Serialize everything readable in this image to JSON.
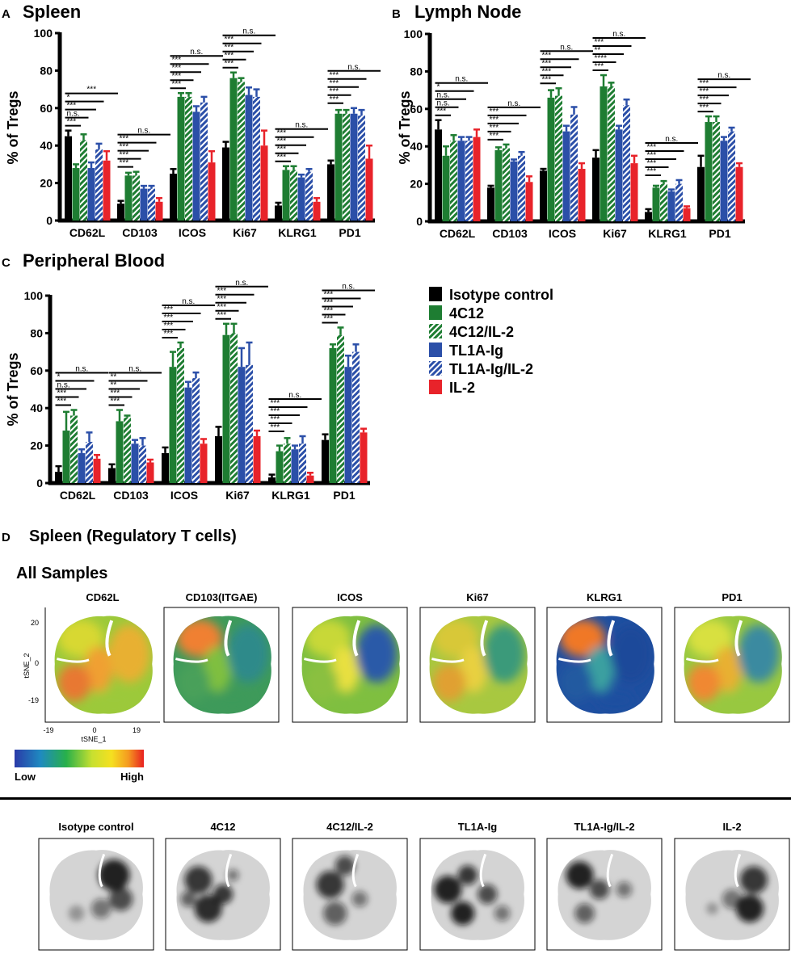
{
  "chart_data": [
    {
      "type": "bar",
      "panel": "A",
      "title": "Spleen",
      "ylabel": "% of Tregs",
      "xlabel": "",
      "ylim": [
        0,
        100
      ],
      "yticks": [
        0,
        20,
        40,
        60,
        80,
        100
      ],
      "categories": [
        "CD62L",
        "CD103",
        "ICOS",
        "Ki67",
        "KLRG1",
        "PD1"
      ],
      "series": [
        {
          "name": "Isotype control",
          "values": [
            45,
            9,
            25,
            39,
            8,
            30
          ],
          "errors": [
            3,
            1.5,
            2.5,
            3,
            1.5,
            2
          ]
        },
        {
          "name": "4C12",
          "values": [
            28,
            24,
            66,
            76,
            27,
            57
          ],
          "errors": [
            2,
            1.5,
            2,
            3,
            2,
            2
          ]
        },
        {
          "name": "4C12/IL-2",
          "values": [
            43,
            24,
            66,
            74,
            27,
            57
          ],
          "errors": [
            3,
            2,
            2,
            2,
            2,
            2
          ]
        },
        {
          "name": "TL1A-Ig",
          "values": [
            28,
            17,
            58,
            67,
            23,
            57
          ],
          "errors": [
            3,
            1.5,
            3,
            4,
            1.5,
            3
          ]
        },
        {
          "name": "TL1A-Ig/IL-2",
          "values": [
            38,
            17,
            63,
            66,
            26,
            56
          ],
          "errors": [
            3,
            1.5,
            3,
            4,
            1.5,
            3
          ]
        },
        {
          "name": "IL-2",
          "values": [
            32,
            10,
            31,
            40,
            10,
            33
          ],
          "errors": [
            5,
            2,
            6,
            8,
            2,
            7
          ]
        }
      ],
      "significance": [
        [
          "***",
          "n.s.",
          "***",
          "*",
          "***"
        ],
        [
          "***",
          "***",
          "***",
          "***",
          "n.s."
        ],
        [
          "***",
          "***",
          "***",
          "***",
          "n.s."
        ],
        [
          "***",
          "***",
          "***",
          "***",
          "n.s."
        ],
        [
          "***",
          "***",
          "***",
          "***",
          "n.s."
        ],
        [
          "***",
          "***",
          "***",
          "***",
          "n.s."
        ]
      ]
    },
    {
      "type": "bar",
      "panel": "B",
      "title": "Lymph Node",
      "ylabel": "% of Tregs",
      "xlabel": "",
      "ylim": [
        0,
        100
      ],
      "yticks": [
        0,
        20,
        40,
        60,
        80,
        100
      ],
      "categories": [
        "CD62L",
        "CD103",
        "ICOS",
        "Ki67",
        "KLRG1",
        "PD1"
      ],
      "series": [
        {
          "name": "Isotype control",
          "values": [
            49,
            18,
            27,
            34,
            5,
            29
          ],
          "errors": [
            5,
            1,
            1,
            4,
            1.5,
            6
          ]
        },
        {
          "name": "4C12",
          "values": [
            35,
            38,
            66,
            72,
            18,
            53
          ],
          "errors": [
            5,
            1.5,
            4,
            6,
            1,
            3
          ]
        },
        {
          "name": "4C12/IL-2",
          "values": [
            43,
            39,
            67,
            72,
            20,
            53
          ],
          "errors": [
            3,
            2,
            4,
            2,
            1.5,
            3
          ]
        },
        {
          "name": "TL1A-Ig",
          "values": [
            43,
            32,
            48,
            49,
            16,
            43
          ],
          "errors": [
            2,
            1,
            3,
            2,
            1,
            2
          ]
        },
        {
          "name": "TL1A-Ig/IL-2",
          "values": [
            43,
            35,
            57,
            62,
            20,
            48
          ],
          "errors": [
            2,
            2,
            4,
            3,
            2,
            2
          ]
        },
        {
          "name": "IL-2",
          "values": [
            45,
            21,
            28,
            31,
            7,
            29
          ],
          "errors": [
            4,
            3,
            3,
            4,
            1,
            2
          ]
        }
      ],
      "significance": [
        [
          "***",
          "n.s.",
          "n.s.",
          "*",
          "n.s."
        ],
        [
          "***",
          "***",
          "***",
          "***",
          "n.s."
        ],
        [
          "***",
          "***",
          "***",
          "***",
          "n.s."
        ],
        [
          "***",
          "****",
          "**",
          "***",
          "n.s."
        ],
        [
          "***",
          "***",
          "***",
          "***",
          "n.s."
        ],
        [
          "***",
          "***",
          "***",
          "***",
          "n.s."
        ]
      ]
    },
    {
      "type": "bar",
      "panel": "C",
      "title": "Peripheral Blood",
      "ylabel": "% of Tregs",
      "xlabel": "",
      "ylim": [
        0,
        100
      ],
      "yticks": [
        0,
        20,
        40,
        60,
        80,
        100
      ],
      "categories": [
        "CD62L",
        "CD103",
        "ICOS",
        "Ki67",
        "KLRG1",
        "PD1"
      ],
      "series": [
        {
          "name": "Isotype control",
          "values": [
            6,
            8,
            16,
            25,
            3,
            23
          ],
          "errors": [
            3,
            2,
            3,
            5,
            1.5,
            3
          ]
        },
        {
          "name": "4C12",
          "values": [
            28,
            33,
            62,
            79,
            17,
            72
          ],
          "errors": [
            10,
            6,
            8,
            6,
            3,
            2
          ]
        },
        {
          "name": "4C12/IL-2",
          "values": [
            36,
            35,
            72,
            80,
            21,
            79
          ],
          "errors": [
            3,
            1,
            3,
            5,
            3,
            4
          ]
        },
        {
          "name": "TL1A-Ig",
          "values": [
            16,
            21,
            51,
            62,
            18,
            62
          ],
          "errors": [
            2,
            2,
            3,
            10,
            2,
            6
          ]
        },
        {
          "name": "TL1A-Ig/IL-2",
          "values": [
            22,
            20,
            56,
            63,
            21,
            70
          ],
          "errors": [
            5,
            4,
            3,
            12,
            4,
            4
          ]
        },
        {
          "name": "IL-2",
          "values": [
            13,
            11,
            21,
            25,
            4,
            27
          ],
          "errors": [
            2,
            1.5,
            2.5,
            3,
            1.5,
            2
          ]
        }
      ],
      "significance": [
        [
          "***",
          "***",
          "n.s.",
          "*",
          "n.s."
        ],
        [
          "***",
          "***",
          "**",
          "**",
          "n.s."
        ],
        [
          "***",
          "***",
          "***",
          "***",
          "n.s."
        ],
        [
          "***",
          "***",
          "***",
          "***",
          "n.s."
        ],
        [
          "***",
          "***",
          "***",
          "***",
          "n.s."
        ],
        [
          "***",
          "***",
          "***",
          "***",
          "n.s."
        ]
      ]
    }
  ],
  "panels": {
    "A": {
      "letter": "A",
      "title": "Spleen"
    },
    "B": {
      "letter": "B",
      "title": "Lymph Node"
    },
    "C": {
      "letter": "C",
      "title": "Peripheral Blood"
    },
    "D": {
      "letter": "D",
      "title": "Spleen (Regulatory T cells)"
    }
  },
  "legend": {
    "items": [
      {
        "label": "Isotype control",
        "color": "#000000",
        "pattern": "solid"
      },
      {
        "label": "4C12",
        "color": "#1e7d32",
        "pattern": "solid"
      },
      {
        "label": "4C12/IL-2",
        "color": "#1e7d32",
        "pattern": "hatched"
      },
      {
        "label": "TL1A-Ig",
        "color": "#2b4fa8",
        "pattern": "solid"
      },
      {
        "label": "TL1A-Ig/IL-2",
        "color": "#2b4fa8",
        "pattern": "hatched"
      },
      {
        "label": "IL-2",
        "color": "#e8232a",
        "pattern": "solid"
      }
    ]
  },
  "tsne": {
    "section_label": "All Samples",
    "axis_x_label": "tSNE_1",
    "axis_y_label": "tSNE_2",
    "x_ticks": [
      "-19",
      "0",
      "19"
    ],
    "y_ticks": [
      "20",
      "0",
      "-19"
    ],
    "marker_maps": [
      "CD62L",
      "CD103(ITGAE)",
      "ICOS",
      "Ki67",
      "KLRG1",
      "PD1"
    ],
    "density_maps": [
      "Isotype control",
      "4C12",
      "4C12/IL-2",
      "TL1A-Ig",
      "TL1A-Ig/IL-2",
      "IL-2"
    ],
    "colorbar": {
      "low": "Low",
      "high": "High"
    }
  },
  "colors": {
    "isotype": "#000000",
    "green": "#1e7d32",
    "blue": "#2b4fa8",
    "red": "#e8232a"
  }
}
